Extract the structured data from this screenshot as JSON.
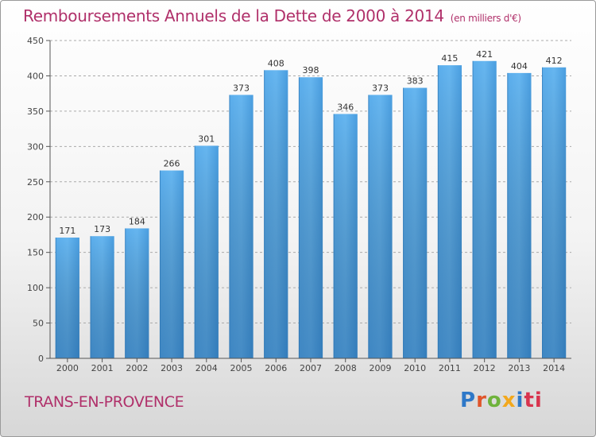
{
  "chart_data": {
    "type": "bar",
    "title": "Remboursements Annuels de la Dette de 2000 à 2014",
    "unit_note": "(en milliers d'€)",
    "categories": [
      "2000",
      "2001",
      "2002",
      "2003",
      "2004",
      "2005",
      "2006",
      "2007",
      "2008",
      "2009",
      "2010",
      "2011",
      "2012",
      "2013",
      "2014"
    ],
    "values": [
      171,
      173,
      184,
      266,
      301,
      373,
      408,
      398,
      346,
      373,
      383,
      415,
      421,
      404,
      412
    ],
    "ylim": [
      0,
      450
    ],
    "yticks": [
      0,
      50,
      100,
      150,
      200,
      250,
      300,
      350,
      400,
      450
    ],
    "grid": true,
    "bar_color": "#3a8fd6",
    "grid_color": "#aaaaaa"
  },
  "footer": {
    "place": "TRANS-EN-PROVENCE",
    "logo": [
      "P",
      "r",
      "o",
      "x",
      "i",
      "ti"
    ]
  },
  "colors": {
    "title": "#b0306a",
    "place": "#b0306a"
  }
}
